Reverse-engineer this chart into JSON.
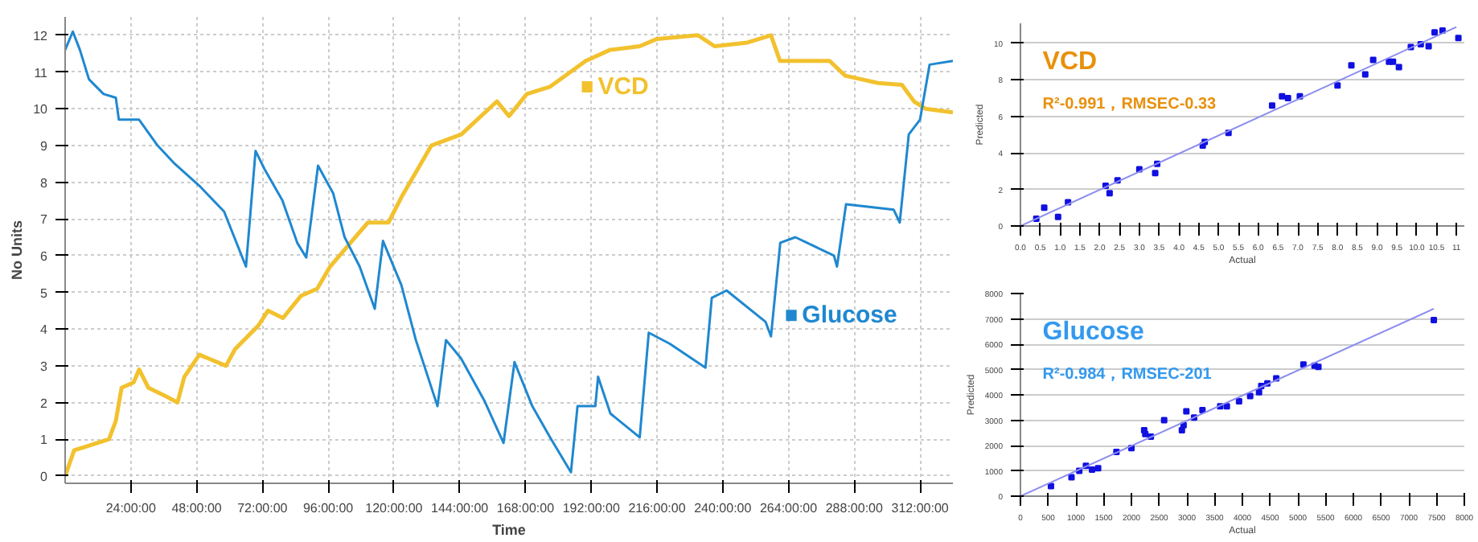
{
  "chart_data": [
    {
      "type": "line",
      "xlabel": "Time",
      "ylabel": "No Units",
      "xlim": [
        0,
        324
      ],
      "ylim": [
        -0.2,
        12.5
      ],
      "xticks": [
        {
          "value": 24,
          "label": "24:00:00"
        },
        {
          "value": 48,
          "label": "48:00:00"
        },
        {
          "value": 72,
          "label": "72:00:00"
        },
        {
          "value": 96,
          "label": "96:00:00"
        },
        {
          "value": 120,
          "label": "120:00:00"
        },
        {
          "value": 144,
          "label": "144:00:00"
        },
        {
          "value": 168,
          "label": "168:00:00"
        },
        {
          "value": 192,
          "label": "192:00:00"
        },
        {
          "value": 216,
          "label": "216:00:00"
        },
        {
          "value": 240,
          "label": "240:00:00"
        },
        {
          "value": 264,
          "label": "264:00:00"
        },
        {
          "value": 288,
          "label": "288:00:00"
        },
        {
          "value": 312,
          "label": "312:00:00"
        }
      ],
      "yticks": [
        0,
        1,
        2,
        3,
        4,
        5,
        6,
        7,
        8,
        9,
        10,
        11,
        12
      ],
      "grid": true,
      "line_style": "solid",
      "legend": "right",
      "series": [
        {
          "name": "VCD",
          "color": "#f2c12e",
          "x": [
            0,
            3.3,
            7.6,
            16,
            18.5,
            20.6,
            25,
            27,
            30.4,
            36,
            41,
            43.5,
            49,
            58.7,
            62,
            70.6,
            74,
            79.5,
            86,
            92,
            96.7,
            103,
            110.5,
            118,
            122.8,
            133.7,
            144.6,
            157.6,
            162,
            168.5,
            177,
            190,
            198.8,
            209.7,
            216,
            231,
            237,
            249,
            257.6,
            260.9,
            279,
            284.7,
            296.7,
            305.4,
            309.8,
            314,
            324
          ],
          "values": [
            0,
            0.7,
            0.8,
            1.0,
            1.5,
            2.4,
            2.55,
            2.9,
            2.4,
            2.2,
            2.0,
            2.7,
            3.3,
            3.0,
            3.45,
            4.1,
            4.5,
            4.3,
            4.9,
            5.1,
            5.7,
            6.25,
            6.9,
            6.9,
            7.6,
            9.0,
            9.3,
            10.2,
            9.8,
            10.4,
            10.6,
            11.3,
            11.6,
            11.7,
            11.9,
            12.0,
            11.7,
            11.8,
            12.0,
            11.3,
            11.3,
            10.9,
            10.7,
            10.65,
            10.2,
            10.0,
            9.9
          ]
        },
        {
          "name": "Glucose",
          "color": "#1f88d0",
          "x": [
            0,
            2.8,
            5.4,
            8.7,
            14,
            18.5,
            19.6,
            27,
            33.7,
            40,
            49,
            58,
            66,
            69.5,
            72.8,
            79.3,
            84.7,
            88,
            92.3,
            97.8,
            102,
            107.5,
            113,
            116,
            122.7,
            128,
            135.9,
            139,
            144.5,
            153,
            160,
            164,
            170.5,
            177,
            184.6,
            187,
            193.5,
            194.5,
            199,
            209.7,
            213,
            220.7,
            233.7,
            236,
            241.4,
            255.6,
            257.6,
            261,
            266.5,
            280.6,
            281.7,
            285,
            302.4,
            304.6,
            307.9,
            312,
            315.5,
            324
          ],
          "values": [
            11.6,
            12.1,
            11.6,
            10.8,
            10.4,
            10.3,
            9.7,
            9.7,
            9.0,
            8.5,
            7.9,
            7.2,
            5.7,
            8.85,
            8.35,
            7.5,
            6.35,
            5.95,
            8.45,
            7.7,
            6.5,
            5.7,
            4.55,
            6.4,
            5.2,
            3.7,
            1.9,
            3.7,
            3.2,
            2.05,
            0.9,
            3.1,
            1.9,
            1.05,
            0.1,
            1.9,
            1.9,
            2.7,
            1.7,
            1.05,
            3.9,
            3.6,
            2.95,
            4.85,
            5.05,
            4.2,
            3.8,
            6.35,
            6.5,
            6.0,
            5.7,
            7.4,
            7.25,
            6.9,
            9.3,
            9.7,
            11.2,
            11.3
          ]
        }
      ]
    },
    {
      "type": "scatter",
      "title": "VCD",
      "annotations": [
        "R²-0.991，RMSEC-0.33"
      ],
      "xlabel": "Actual",
      "ylabel": "Predicted",
      "xlim": [
        0,
        11.2
      ],
      "ylim": [
        0,
        11.1
      ],
      "xticks": [
        {
          "value": 0,
          "label": "0.0"
        },
        {
          "value": 0.5,
          "label": "0.5"
        },
        {
          "value": 1,
          "label": "1.0"
        },
        {
          "value": 1.5,
          "label": "1.5"
        },
        {
          "value": 2,
          "label": "2.0"
        },
        {
          "value": 2.5,
          "label": "2.5"
        },
        {
          "value": 3,
          "label": "3.0"
        },
        {
          "value": 3.5,
          "label": "3.5"
        },
        {
          "value": 4,
          "label": "4.0"
        },
        {
          "value": 4.5,
          "label": "4.5"
        },
        {
          "value": 5,
          "label": "5.0"
        },
        {
          "value": 5.5,
          "label": "5.5"
        },
        {
          "value": 6,
          "label": "6.0"
        },
        {
          "value": 6.5,
          "label": "6.5"
        },
        {
          "value": 7,
          "label": "7.0"
        },
        {
          "value": 7.5,
          "label": "7.5"
        },
        {
          "value": 8,
          "label": "8.0"
        },
        {
          "value": 8.5,
          "label": "8.5"
        },
        {
          "value": 9,
          "label": "9.0"
        },
        {
          "value": 9.5,
          "label": "9.5"
        },
        {
          "value": 10,
          "label": "10.0"
        },
        {
          "value": 10.5,
          "label": "10.5"
        },
        11
      ],
      "yticks": [
        0,
        2,
        4,
        6,
        8,
        10
      ],
      "grid": "y",
      "series": [
        {
          "type": "scatter",
          "marker": "square",
          "color": "#1010e0",
          "x": [
            0.4,
            0.6,
            0.95,
            1.2,
            2.15,
            2.25,
            2.45,
            3.0,
            3.4,
            3.45,
            4.6,
            4.65,
            5.25,
            6.35,
            6.6,
            6.75,
            7.05,
            8.0,
            8.35,
            8.7,
            8.9,
            9.3,
            9.4,
            9.55,
            9.85,
            10.1,
            10.3,
            10.45,
            10.65,
            11.05
          ],
          "values": [
            0.4,
            1.0,
            0.5,
            1.3,
            2.2,
            1.8,
            2.5,
            3.1,
            2.9,
            3.4,
            4.4,
            4.6,
            5.1,
            6.6,
            7.1,
            7.0,
            7.1,
            7.7,
            8.8,
            8.3,
            9.1,
            9.0,
            9.0,
            8.7,
            9.8,
            9.95,
            9.85,
            10.6,
            10.7,
            10.3
          ]
        },
        {
          "type": "line",
          "color": "#8c8cf0",
          "x": [
            0,
            11
          ],
          "values": [
            0,
            10.9
          ]
        }
      ]
    },
    {
      "type": "scatter",
      "title": "Glucose",
      "annotations": [
        "R²-0.984，RMSEC-201"
      ],
      "xlabel": "Actual",
      "ylabel": "Predicted",
      "xlim": [
        0,
        8000
      ],
      "ylim": [
        0,
        8000
      ],
      "xticks": [
        0,
        500,
        1000,
        1500,
        2000,
        2500,
        3000,
        3500,
        4000,
        4500,
        5000,
        5500,
        6000,
        6500,
        7000,
        7500,
        8000
      ],
      "yticks": [
        0,
        1000,
        2000,
        3000,
        4000,
        5000,
        6000,
        7000,
        8000
      ],
      "grid": "y",
      "series": [
        {
          "type": "scatter",
          "marker": "square",
          "color": "#1010e0",
          "x": [
            550,
            920,
            1060,
            1180,
            1290,
            1400,
            1730,
            2000,
            2230,
            2250,
            2350,
            2590,
            2910,
            2940,
            2990,
            3130,
            3280,
            3600,
            3720,
            3940,
            4140,
            4300,
            4340,
            4450,
            4610,
            5100,
            5300,
            5370,
            7450
          ],
          "values": [
            400,
            750,
            1000,
            1200,
            1050,
            1100,
            1750,
            1900,
            2600,
            2450,
            2350,
            3000,
            2600,
            2800,
            3350,
            3100,
            3400,
            3550,
            3550,
            3750,
            3950,
            4100,
            4350,
            4450,
            4650,
            5200,
            5150,
            5100,
            6950
          ]
        },
        {
          "type": "line",
          "color": "#8c8cf0",
          "x": [
            0,
            7450
          ],
          "values": [
            0,
            7400
          ]
        }
      ]
    }
  ]
}
